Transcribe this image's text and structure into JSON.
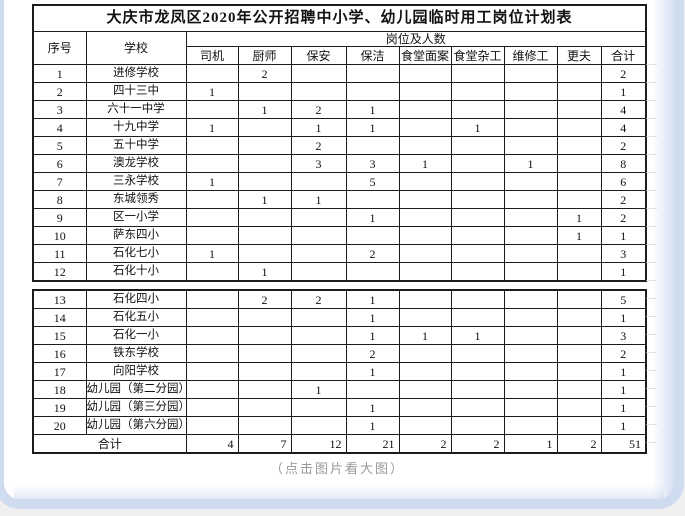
{
  "page": {
    "caption": "（点击图片看大图）",
    "bg_color": "#f0f0f0",
    "frame_border_color": "#cfdbef",
    "table_border_color": "#1c1c1c",
    "caption_color": "#9a9a9a"
  },
  "table": {
    "title": "大庆市龙凤区2020年公开招聘中小学、幼儿园临时用工岗位计划表",
    "header": {
      "col_index": "序号",
      "col_school": "学校",
      "group": "岗位及人数",
      "positions": [
        "司机",
        "厨师",
        "保安",
        "保洁",
        "食堂面案",
        "食堂杂工",
        "维修工",
        "更夫",
        "合计"
      ]
    },
    "rows_block1": [
      {
        "no": "1",
        "school": "进修学校",
        "values": [
          "",
          "2",
          "",
          "",
          "",
          "",
          "",
          "",
          "2"
        ]
      },
      {
        "no": "2",
        "school": "四十三中",
        "values": [
          "1",
          "",
          "",
          "",
          "",
          "",
          "",
          "",
          "1"
        ]
      },
      {
        "no": "3",
        "school": "六十一中学",
        "values": [
          "",
          "1",
          "2",
          "1",
          "",
          "",
          "",
          "",
          "4"
        ]
      },
      {
        "no": "4",
        "school": "十九中学",
        "values": [
          "1",
          "",
          "1",
          "1",
          "",
          "1",
          "",
          "",
          "4"
        ]
      },
      {
        "no": "5",
        "school": "五十中学",
        "values": [
          "",
          "",
          "2",
          "",
          "",
          "",
          "",
          "",
          "2"
        ]
      },
      {
        "no": "6",
        "school": "澳龙学校",
        "values": [
          "",
          "",
          "3",
          "3",
          "1",
          "",
          "1",
          "",
          "8"
        ]
      },
      {
        "no": "7",
        "school": "三永学校",
        "values": [
          "1",
          "",
          "",
          "5",
          "",
          "",
          "",
          "",
          "6"
        ]
      },
      {
        "no": "8",
        "school": "东城领秀",
        "values": [
          "",
          "1",
          "1",
          "",
          "",
          "",
          "",
          "",
          "2"
        ]
      },
      {
        "no": "9",
        "school": "区一小学",
        "values": [
          "",
          "",
          "",
          "1",
          "",
          "",
          "",
          "1",
          "2"
        ]
      },
      {
        "no": "10",
        "school": "萨东四小",
        "values": [
          "",
          "",
          "",
          "",
          "",
          "",
          "",
          "1",
          "1"
        ]
      },
      {
        "no": "11",
        "school": "石化七小",
        "values": [
          "1",
          "",
          "",
          "2",
          "",
          "",
          "",
          "",
          "3"
        ]
      },
      {
        "no": "12",
        "school": "石化十小",
        "values": [
          "",
          "1",
          "",
          "",
          "",
          "",
          "",
          "",
          "1"
        ]
      }
    ],
    "rows_block2": [
      {
        "no": "13",
        "school": "石化四小",
        "values": [
          "",
          "2",
          "2",
          "1",
          "",
          "",
          "",
          "",
          "5"
        ]
      },
      {
        "no": "14",
        "school": "石化五小",
        "values": [
          "",
          "",
          "",
          "1",
          "",
          "",
          "",
          "",
          "1"
        ]
      },
      {
        "no": "15",
        "school": "石化一小",
        "values": [
          "",
          "",
          "",
          "1",
          "1",
          "1",
          "",
          "",
          "3"
        ]
      },
      {
        "no": "16",
        "school": "铁东学校",
        "values": [
          "",
          "",
          "",
          "2",
          "",
          "",
          "",
          "",
          "2"
        ]
      },
      {
        "no": "17",
        "school": "向阳学校",
        "values": [
          "",
          "",
          "",
          "1",
          "",
          "",
          "",
          "",
          "1"
        ]
      },
      {
        "no": "18",
        "school": "幼儿园（第二分园）",
        "values": [
          "",
          "",
          "1",
          "",
          "",
          "",
          "",
          "",
          "1"
        ]
      },
      {
        "no": "19",
        "school": "幼儿园（第三分园）",
        "values": [
          "",
          "",
          "",
          "1",
          "",
          "",
          "",
          "",
          "1"
        ]
      },
      {
        "no": "20",
        "school": "幼儿园（第六分园）",
        "values": [
          "",
          "",
          "",
          "1",
          "",
          "",
          "",
          "",
          "1"
        ]
      }
    ],
    "total": {
      "label": "合计",
      "values": [
        "4",
        "7",
        "12",
        "21",
        "2",
        "2",
        "1",
        "2",
        "51"
      ]
    }
  }
}
